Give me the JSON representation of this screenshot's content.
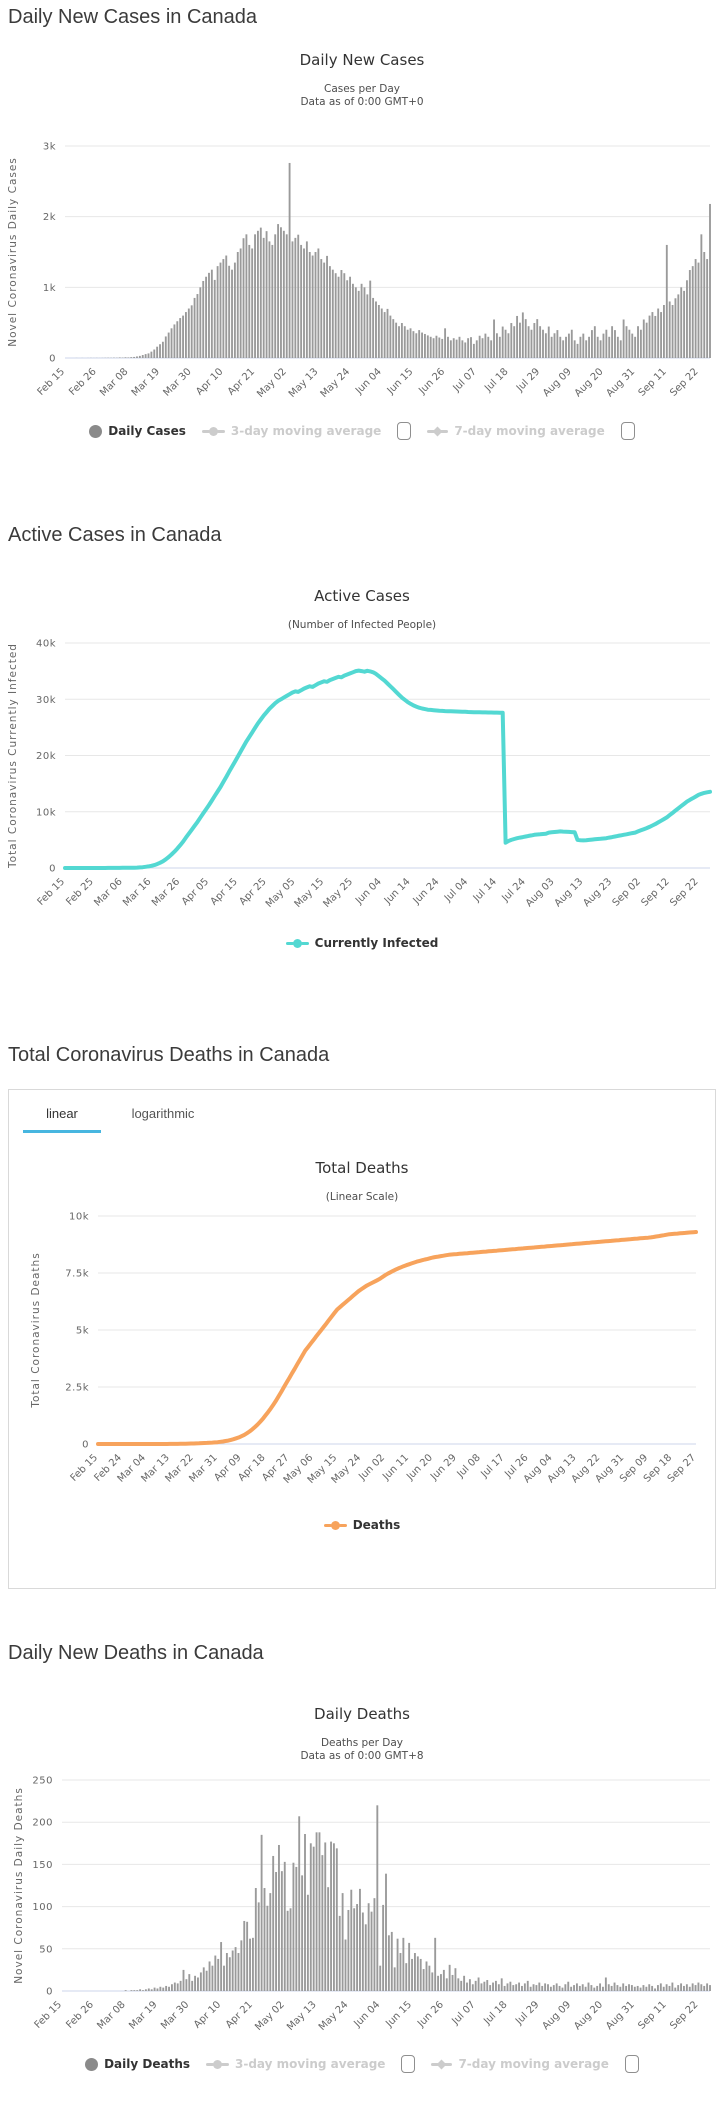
{
  "colors": {
    "bar_gray": "#9a9a9a",
    "active_cyan": "#53d8d2",
    "deaths_orange": "#f7a35c",
    "grid": "#e7e7e7",
    "axis_line": "#ccd6eb",
    "tab_underline": "#47b6e0",
    "legend_active_text": "#333333",
    "legend_muted_text": "#cccccc"
  },
  "sections": {
    "daily_cases": {
      "heading": "Daily New Cases in Canada",
      "legend": {
        "primary": "Daily Cases",
        "ma3": "3-day moving average",
        "ma7": "7-day moving average"
      }
    },
    "active_cases": {
      "heading": "Active Cases in Canada",
      "legend": {
        "primary": "Currently Infected"
      }
    },
    "total_deaths": {
      "heading": "Total Coronavirus Deaths in Canada",
      "tabs": {
        "linear": "linear",
        "logarithmic": "logarithmic"
      },
      "legend": {
        "primary": "Deaths"
      }
    },
    "daily_deaths": {
      "heading": "Daily New Deaths in Canada",
      "legend": {
        "primary": "Daily Deaths",
        "ma3": "3-day moving average",
        "ma7": "7-day moving average"
      }
    }
  },
  "chart_data": [
    {
      "id": "daily-new-cases",
      "type": "bar",
      "title": "Daily New Cases",
      "subtitle": [
        "Cases per Day",
        "Data as of 0:00 GMT+0"
      ],
      "y_axis_title": "Novel Coronavirus Daily Cases",
      "series_name": "Daily Cases",
      "color": "#9a9a9a",
      "grid": true,
      "legend_position": "bottom",
      "ylim": [
        0,
        3000
      ],
      "y_ticks": [
        {
          "label": "3k",
          "value": 3000
        },
        {
          "label": "2k",
          "value": 2000
        },
        {
          "label": "1k",
          "value": 1000
        },
        {
          "label": "0",
          "value": 0
        }
      ],
      "x_start_date": "Feb 15",
      "x_tick_step": 11,
      "x_ticks": [
        "Feb 15",
        "Feb 26",
        "Mar 08",
        "Mar 19",
        "Mar 30",
        "Apr 10",
        "Apr 21",
        "May 02",
        "May 13",
        "May 24",
        "Jun 04",
        "Jun 15",
        "Jun 26",
        "Jul 07",
        "Jul 18",
        "Jul 29",
        "Aug 09",
        "Aug 20",
        "Aug 31",
        "Sep 11",
        "Sep 22"
      ],
      "values": [
        0,
        0,
        0,
        0,
        1,
        0,
        1,
        0,
        1,
        2,
        1,
        2,
        1,
        2,
        3,
        4,
        3,
        5,
        4,
        8,
        6,
        10,
        8,
        12,
        15,
        22,
        30,
        42,
        55,
        65,
        90,
        120,
        160,
        195,
        230,
        305,
        360,
        420,
        475,
        520,
        565,
        600,
        650,
        700,
        745,
        850,
        905,
        1000,
        1090,
        1150,
        1205,
        1250,
        1105,
        1300,
        1350,
        1400,
        1450,
        1305,
        1250,
        1350,
        1500,
        1550,
        1695,
        1750,
        1600,
        1550,
        1750,
        1800,
        1845,
        1700,
        1795,
        1650,
        1600,
        1750,
        1895,
        1850,
        1800,
        1750,
        2760,
        1650,
        1700,
        1745,
        1600,
        1550,
        1650,
        1500,
        1450,
        1500,
        1550,
        1400,
        1350,
        1445,
        1300,
        1250,
        1200,
        1150,
        1245,
        1200,
        1100,
        1150,
        1050,
        1000,
        950,
        1050,
        1000,
        900,
        1095,
        850,
        800,
        750,
        700,
        650,
        695,
        600,
        550,
        500,
        450,
        495,
        450,
        400,
        420,
        380,
        350,
        395,
        360,
        340,
        320,
        300,
        280,
        315,
        290,
        270,
        420,
        300,
        250,
        280,
        260,
        300,
        250,
        220,
        280,
        295,
        200,
        250,
        315,
        280,
        345,
        300,
        250,
        545,
        350,
        300,
        445,
        400,
        350,
        495,
        450,
        595,
        500,
        645,
        550,
        450,
        400,
        495,
        550,
        450,
        400,
        350,
        445,
        300,
        350,
        395,
        300,
        250,
        300,
        345,
        400,
        250,
        200,
        300,
        345,
        250,
        300,
        395,
        450,
        300,
        250,
        345,
        400,
        300,
        450,
        395,
        300,
        250,
        545,
        450,
        400,
        345,
        300,
        450,
        400,
        545,
        500,
        600,
        650,
        595,
        700,
        650,
        750,
        1600,
        800,
        750,
        845,
        900,
        1000,
        950,
        1100,
        1245,
        1300,
        1400,
        1350,
        1750,
        1500,
        1400,
        2180
      ]
    },
    {
      "id": "active-cases",
      "type": "line",
      "title": "Active Cases",
      "subtitle": [
        "(Number of Infected People)"
      ],
      "y_axis_title": "Total Coronavirus Currently Infected",
      "series_name": "Currently Infected",
      "color": "#53d8d2",
      "grid": true,
      "legend_position": "bottom",
      "ylim": [
        0,
        40000
      ],
      "y_ticks": [
        {
          "label": "40k",
          "value": 40000
        },
        {
          "label": "30k",
          "value": 30000
        },
        {
          "label": "20k",
          "value": 20000
        },
        {
          "label": "10k",
          "value": 10000
        },
        {
          "label": "0",
          "value": 0
        }
      ],
      "x_start_date": "Feb 15",
      "x_tick_step": 10,
      "x_ticks": [
        "Feb 15",
        "Feb 25",
        "Mar 06",
        "Mar 16",
        "Mar 26",
        "Apr 05",
        "Apr 15",
        "Apr 25",
        "May 05",
        "May 15",
        "May 25",
        "Jun 04",
        "Jun 14",
        "Jun 24",
        "Jul 04",
        "Jul 14",
        "Jul 24",
        "Aug 03",
        "Aug 13",
        "Aug 23",
        "Sep 02",
        "Sep 12",
        "Sep 22"
      ],
      "values": [
        0,
        0,
        0,
        0,
        1,
        1,
        1,
        1,
        2,
        3,
        3,
        4,
        5,
        6,
        8,
        10,
        12,
        15,
        18,
        22,
        27,
        33,
        40,
        48,
        60,
        80,
        110,
        150,
        210,
        290,
        390,
        520,
        700,
        920,
        1200,
        1550,
        1950,
        2400,
        2900,
        3450,
        4050,
        4700,
        5400,
        6100,
        6800,
        7500,
        8200,
        8950,
        9700,
        10450,
        11200,
        12000,
        12800,
        13600,
        14400,
        15300,
        16200,
        17100,
        18000,
        18900,
        19800,
        20700,
        21600,
        22500,
        23300,
        24100,
        24900,
        25700,
        26400,
        27100,
        27700,
        28300,
        28800,
        29300,
        29700,
        30000,
        30300,
        30600,
        30900,
        31200,
        31400,
        31300,
        31600,
        31900,
        32100,
        32300,
        32200,
        32500,
        32800,
        33000,
        33200,
        33100,
        33400,
        33600,
        33800,
        34000,
        33900,
        34200,
        34400,
        34600,
        34800,
        35000,
        35100,
        35000,
        34900,
        35050,
        34950,
        34800,
        34500,
        34100,
        33700,
        33300,
        32800,
        32300,
        31800,
        31300,
        30800,
        30300,
        29900,
        29500,
        29200,
        28900,
        28700,
        28500,
        28350,
        28250,
        28150,
        28100,
        28050,
        28000,
        27950,
        27920,
        27900,
        27880,
        27860,
        27840,
        27820,
        27800,
        27780,
        27760,
        27740,
        27720,
        27700,
        27690,
        27680,
        27670,
        27660,
        27650,
        27640,
        27630,
        27620,
        27610,
        27600,
        4500,
        4800,
        5000,
        5150,
        5300,
        5400,
        5500,
        5600,
        5700,
        5800,
        5900,
        5950,
        6000,
        6050,
        6100,
        6300,
        6350,
        6400,
        6450,
        6500,
        6480,
        6450,
        6420,
        6380,
        6340,
        5000,
        4950,
        4900,
        4950,
        5000,
        5050,
        5100,
        5150,
        5200,
        5250,
        5300,
        5400,
        5500,
        5600,
        5700,
        5800,
        5900,
        6000,
        6100,
        6200,
        6300,
        6500,
        6700,
        6900,
        7100,
        7300,
        7550,
        7800,
        8100,
        8400,
        8700,
        9000,
        9400,
        9800,
        10200,
        10600,
        11000,
        11400,
        11800,
        12100,
        12400,
        12700,
        13000,
        13200,
        13350,
        13450,
        13550
      ]
    },
    {
      "id": "total-deaths",
      "type": "line",
      "title": "Total Deaths",
      "subtitle": [
        "(Linear Scale)"
      ],
      "y_axis_title": "Total Coronavirus Deaths",
      "series_name": "Deaths",
      "color": "#f7a35c",
      "grid": true,
      "legend_position": "bottom",
      "ylim": [
        0,
        10000
      ],
      "y_ticks": [
        {
          "label": "10k",
          "value": 10000
        },
        {
          "label": "7.5k",
          "value": 7500
        },
        {
          "label": "5k",
          "value": 5000
        },
        {
          "label": "2.5k",
          "value": 2500
        },
        {
          "label": "0",
          "value": 0
        }
      ],
      "x_start_date": "Feb 15",
      "x_tick_step": 9,
      "x_ticks": [
        "Feb 15",
        "Feb 24",
        "Mar 04",
        "Mar 13",
        "Mar 22",
        "Mar 31",
        "Apr 09",
        "Apr 18",
        "Apr 27",
        "May 06",
        "May 15",
        "May 24",
        "Jun 02",
        "Jun 11",
        "Jun 20",
        "Jun 29",
        "Jul 08",
        "Jul 17",
        "Jul 26",
        "Aug 04",
        "Aug 13",
        "Aug 22",
        "Aug 31",
        "Sep 09",
        "Sep 18",
        "Sep 27"
      ],
      "values": [
        0,
        0,
        0,
        0,
        0,
        0,
        0,
        0,
        0,
        0,
        0,
        0,
        0,
        0,
        0,
        0,
        0,
        0,
        0,
        0,
        0,
        0,
        0,
        1,
        1,
        1,
        2,
        3,
        4,
        5,
        6,
        8,
        9,
        12,
        16,
        20,
        24,
        28,
        32,
        38,
        44,
        50,
        55,
        62,
        70,
        80,
        95,
        110,
        130,
        150,
        180,
        210,
        250,
        290,
        340,
        400,
        470,
        550,
        640,
        740,
        850,
        970,
        1100,
        1250,
        1400,
        1560,
        1730,
        1910,
        2100,
        2300,
        2500,
        2700,
        2900,
        3100,
        3300,
        3500,
        3700,
        3900,
        4100,
        4250,
        4400,
        4550,
        4700,
        4850,
        5000,
        5150,
        5300,
        5450,
        5600,
        5750,
        5900,
        6000,
        6100,
        6200,
        6300,
        6400,
        6500,
        6600,
        6700,
        6780,
        6860,
        6940,
        7000,
        7060,
        7120,
        7180,
        7240,
        7320,
        7400,
        7470,
        7530,
        7590,
        7650,
        7700,
        7750,
        7800,
        7840,
        7880,
        7920,
        7960,
        8000,
        8030,
        8060,
        8090,
        8120,
        8150,
        8180,
        8200,
        8220,
        8240,
        8260,
        8280,
        8300,
        8310,
        8320,
        8330,
        8340,
        8350,
        8360,
        8370,
        8380,
        8390,
        8400,
        8410,
        8420,
        8430,
        8440,
        8450,
        8460,
        8470,
        8480,
        8490,
        8500,
        8510,
        8520,
        8530,
        8540,
        8550,
        8560,
        8570,
        8580,
        8590,
        8600,
        8610,
        8620,
        8630,
        8640,
        8650,
        8660,
        8670,
        8680,
        8690,
        8700,
        8710,
        8720,
        8730,
        8740,
        8750,
        8760,
        8770,
        8780,
        8790,
        8800,
        8810,
        8820,
        8830,
        8840,
        8850,
        8860,
        8870,
        8880,
        8890,
        8900,
        8910,
        8920,
        8930,
        8940,
        8950,
        8960,
        8970,
        8980,
        8990,
        9000,
        9010,
        9020,
        9030,
        9040,
        9050,
        9060,
        9080,
        9100,
        9120,
        9140,
        9160,
        9180,
        9200,
        9210,
        9220,
        9230,
        9240,
        9250,
        9260,
        9270,
        9280,
        9290,
        9300
      ]
    },
    {
      "id": "daily-new-deaths",
      "type": "bar",
      "title": "Daily Deaths",
      "subtitle": [
        "Deaths per Day",
        "Data as of 0:00 GMT+8"
      ],
      "y_axis_title": "Novel Coronavirus Daily Deaths",
      "series_name": "Daily Deaths",
      "color": "#9a9a9a",
      "grid": true,
      "legend_position": "bottom",
      "ylim": [
        0,
        250
      ],
      "y_ticks": [
        {
          "label": "250",
          "value": 250
        },
        {
          "label": "200",
          "value": 200
        },
        {
          "label": "150",
          "value": 150
        },
        {
          "label": "100",
          "value": 100
        },
        {
          "label": "50",
          "value": 50
        },
        {
          "label": "0",
          "value": 0
        }
      ],
      "x_start_date": "Feb 15",
      "x_tick_step": 11,
      "x_ticks": [
        "Feb 15",
        "Feb 26",
        "Mar 08",
        "Mar 19",
        "Mar 30",
        "Apr 10",
        "Apr 21",
        "May 02",
        "May 13",
        "May 24",
        "Jun 04",
        "Jun 15",
        "Jun 26",
        "Jul 07",
        "Jul 18",
        "Jul 29",
        "Aug 09",
        "Aug 20",
        "Aug 31",
        "Sep 11",
        "Sep 22"
      ],
      "values": [
        0,
        0,
        0,
        0,
        0,
        0,
        0,
        0,
        0,
        0,
        0,
        0,
        0,
        0,
        0,
        0,
        0,
        0,
        0,
        0,
        0,
        0,
        1,
        0,
        1,
        1,
        1,
        2,
        1,
        2,
        3,
        2,
        4,
        3,
        5,
        4,
        6,
        5,
        8,
        10,
        9,
        12,
        25,
        14,
        20,
        12,
        18,
        16,
        22,
        28,
        24,
        35,
        30,
        42,
        38,
        58,
        30,
        45,
        40,
        48,
        52,
        45,
        60,
        83,
        82,
        62,
        63,
        122,
        105,
        185,
        122,
        101,
        116,
        160,
        141,
        173,
        142,
        153,
        95,
        98,
        152,
        147,
        207,
        137,
        186,
        114,
        175,
        171,
        188,
        188,
        161,
        176,
        123,
        177,
        175,
        169,
        89,
        116,
        61,
        96,
        120,
        98,
        103,
        121,
        93,
        79,
        104,
        94,
        110,
        220,
        30,
        102,
        139,
        66,
        70,
        28,
        62,
        45,
        63,
        33,
        57,
        38,
        45,
        41,
        38,
        26,
        35,
        30,
        22,
        63,
        18,
        20,
        25,
        15,
        31,
        19,
        27,
        15,
        12,
        18,
        10,
        14,
        8,
        12,
        16,
        9,
        11,
        13,
        7,
        10,
        12,
        8,
        15,
        6,
        9,
        11,
        7,
        8,
        10,
        6,
        9,
        12,
        5,
        8,
        7,
        10,
        6,
        9,
        8,
        5,
        7,
        9,
        6,
        4,
        8,
        11,
        5,
        7,
        9,
        6,
        8,
        5,
        10,
        7,
        4,
        6,
        9,
        5,
        16,
        8,
        6,
        10,
        7,
        5,
        9,
        6,
        8,
        7,
        5,
        6,
        4,
        7,
        5,
        8,
        6,
        3,
        7,
        9,
        5,
        8,
        6,
        10,
        4,
        7,
        9,
        6,
        8,
        5,
        9,
        7,
        10,
        8,
        6,
        9,
        7
      ]
    }
  ]
}
